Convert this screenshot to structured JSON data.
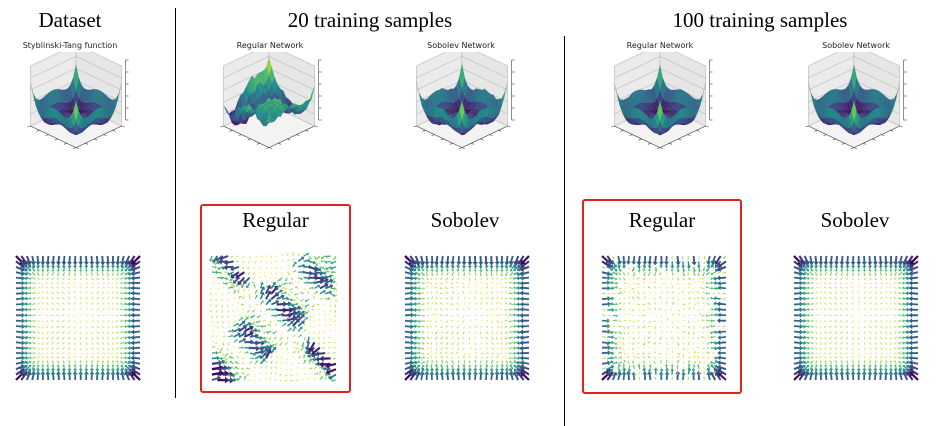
{
  "headers": {
    "dataset": "Dataset",
    "samples_20": "20 training samples",
    "samples_100": "100 training samples"
  },
  "surface_titles": {
    "dataset": "Styblinski-Tang function",
    "s20_regular": "Regular Network",
    "s20_sobolev": "Sobolev Network",
    "s100_regular": "Regular Network",
    "s100_sobolev": "Sobolev Network"
  },
  "field_labels": {
    "s20_regular": "Regular",
    "s20_sobolev": "Sobolev",
    "s100_regular": "Regular",
    "s100_sobolev": "Sobolev"
  },
  "colors": {
    "highlight": "#e0231c",
    "cmap": [
      "#440154",
      "#3b528b",
      "#21918c",
      "#5ec962",
      "#fde725"
    ]
  }
}
